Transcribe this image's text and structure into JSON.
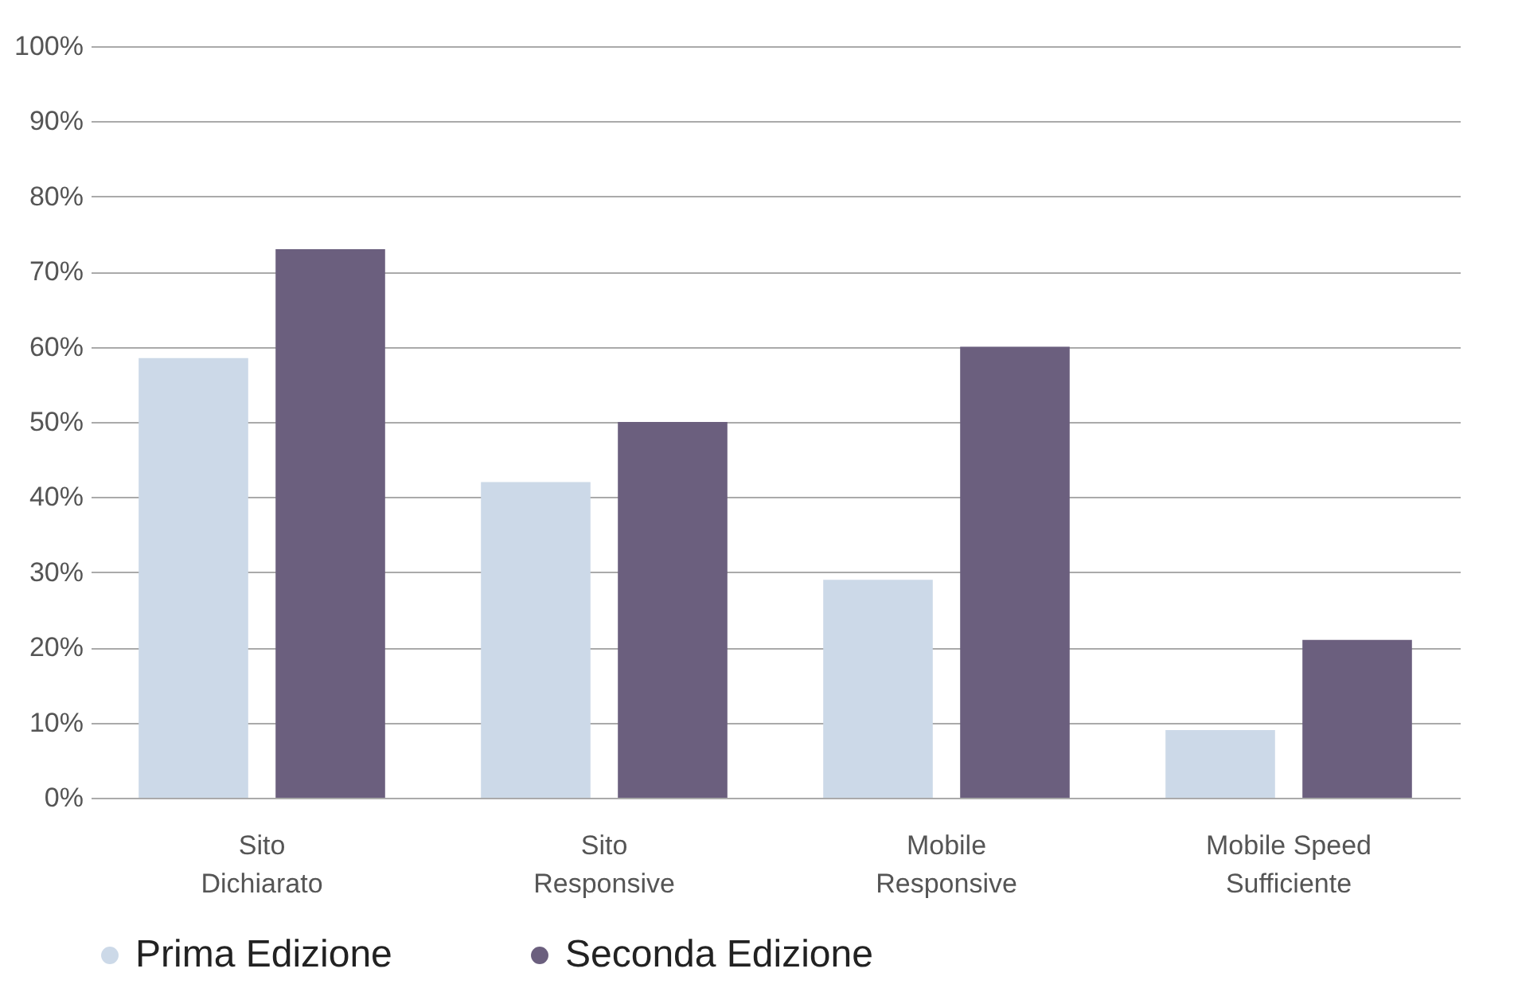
{
  "chart_data": {
    "type": "bar",
    "categories": [
      "Sito\nDichiarato",
      "Sito\nResponsive",
      "Mobile\nResponsive",
      "Mobile Speed\nSufficiente"
    ],
    "series": [
      {
        "name": "Prima Edizione",
        "color": "#ccd9e8",
        "values": [
          58.5,
          42,
          29,
          9
        ]
      },
      {
        "name": "Seconda Edizione",
        "color": "#6b5f7e",
        "values": [
          73,
          50,
          60,
          21
        ]
      }
    ],
    "ylim": [
      0,
      100
    ],
    "yticks": [
      {
        "value": 0,
        "label": "0%"
      },
      {
        "value": 10,
        "label": "10%"
      },
      {
        "value": 20,
        "label": "20%"
      },
      {
        "value": 30,
        "label": "30%"
      },
      {
        "value": 40,
        "label": "40%"
      },
      {
        "value": 50,
        "label": "50%"
      },
      {
        "value": 60,
        "label": "60%"
      },
      {
        "value": 70,
        "label": "70%"
      },
      {
        "value": 80,
        "label": "80%"
      },
      {
        "value": 90,
        "label": "90%"
      },
      {
        "value": 100,
        "label": "100%"
      }
    ],
    "grid": "y",
    "legend": "bottom"
  }
}
